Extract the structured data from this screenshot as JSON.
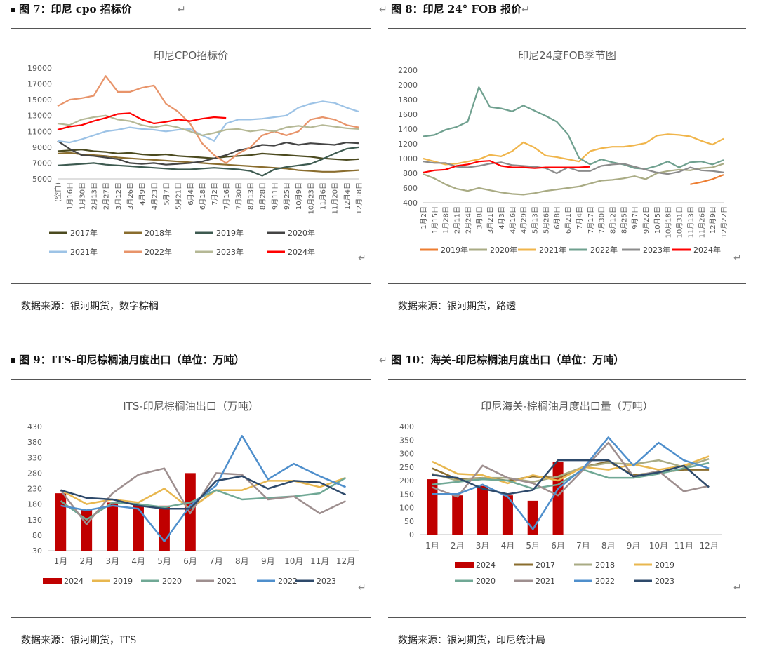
{
  "panels": [
    {
      "caption": "图 7：印尼 cpo 招标价",
      "source": "数据来源：银河期货，数字棕榈",
      "chart_data": {
        "type": "line",
        "title": "印尼CPO招标价",
        "x": [
          "(空白)",
          "1月16日",
          "1月30日",
          "2月13日",
          "2月27日",
          "3月12日",
          "3月26日",
          "4月9日",
          "4月23日",
          "5月7日",
          "5月21日",
          "6月4日",
          "6月18日",
          "7月2日",
          "7月16日",
          "7月30日",
          "8月13日",
          "8月28日",
          "9月11日",
          "9月25日",
          "10月9日",
          "10月23日",
          "11月6日",
          "11月20日",
          "12月4日",
          "12月18日"
        ],
        "y_ticks": [
          "5000",
          "7000",
          "9000",
          "11000",
          "13000",
          "15000",
          "17000",
          "19000"
        ],
        "ylim": [
          5000,
          19000
        ],
        "series": [
          {
            "name": "2017年",
            "color": "#4b4a1f",
            "values": [
              8500,
              8600,
              8700,
              8500,
              8400,
              8200,
              8300,
              8100,
              8000,
              8100,
              7900,
              7800,
              7700,
              7600,
              7800,
              7900,
              8000,
              8200,
              8100,
              8000,
              7900,
              7800,
              7600,
              7500,
              7400,
              7500
            ]
          },
          {
            "name": "2018年",
            "color": "#8a6d2e",
            "values": [
              8200,
              8300,
              8100,
              8000,
              7900,
              7700,
              7600,
              7500,
              7400,
              7300,
              7200,
              7100,
              7000,
              6900,
              6800,
              6700,
              6600,
              6500,
              6400,
              6300,
              6100,
              6000,
              5900,
              5900,
              6000,
              6100
            ]
          },
          {
            "name": "2019年",
            "color": "#3d5a50",
            "values": [
              6700,
              6800,
              6900,
              7000,
              6800,
              6700,
              6600,
              6500,
              6400,
              6300,
              6200,
              6200,
              6300,
              6400,
              6300,
              6200,
              6000,
              5400,
              6200,
              6500,
              6700,
              6900,
              7500,
              8200,
              8800,
              9000
            ]
          },
          {
            "name": "2020年",
            "color": "#444444",
            "values": [
              9800,
              8800,
              8000,
              7900,
              7700,
              7500,
              7000,
              6900,
              7000,
              6800,
              6900,
              7000,
              7200,
              7600,
              8000,
              8600,
              8900,
              9300,
              9200,
              9600,
              9300,
              9500,
              9400,
              9300,
              9600,
              9500
            ]
          },
          {
            "name": "2021年",
            "color": "#9dc3e6",
            "values": [
              9800,
              9600,
              10000,
              10500,
              11000,
              11200,
              11500,
              11300,
              11200,
              11000,
              11200,
              11300,
              10500,
              9800,
              12000,
              12500,
              12500,
              12600,
              12800,
              13000,
              14000,
              14500,
              14800,
              14600,
              14000,
              13500
            ]
          },
          {
            "name": "2022年",
            "color": "#e8946a",
            "values": [
              14200,
              15000,
              15200,
              15500,
              18000,
              16000,
              16000,
              16500,
              16800,
              14500,
              13500,
              12000,
              9500,
              8000,
              7000,
              8200,
              9000,
              10500,
              11000,
              10500,
              11000,
              12500,
              12800,
              12500,
              11800,
              11500
            ]
          },
          {
            "name": "2023年",
            "color": "#b5b895",
            "values": [
              12000,
              11800,
              12500,
              12800,
              13000,
              12500,
              12300,
              11800,
              11500,
              11800,
              11500,
              11000,
              10500,
              10800,
              11200,
              11300,
              11000,
              11200,
              11000,
              11500,
              11700,
              11500,
              11800,
              11600,
              11400,
              11300
            ]
          },
          {
            "name": "2024年",
            "color": "#ff0000",
            "values": [
              11200,
              11600,
              11800,
              12300,
              12700,
              13200,
              13300,
              12500,
              12000,
              12200,
              12500,
              12300,
              12600,
              12800,
              12700,
              null,
              null,
              null,
              null,
              null,
              null,
              null,
              null,
              null,
              null,
              null
            ]
          }
        ]
      }
    },
    {
      "caption": "图 8：印尼 24° FOB 报价",
      "source": "数据来源：银河期货，路透",
      "chart_data": {
        "type": "line",
        "title": "印尼24度FOB季节图",
        "x": [
          "1月2日",
          "1月15日",
          "1月28日",
          "2月11日",
          "2月24日",
          "3月8日",
          "3月21日",
          "4月3日",
          "4月16日",
          "4月29日",
          "5月13日",
          "5月26日",
          "6月8日",
          "6月21日",
          "7月4日",
          "7月17日",
          "7月30日",
          "8月12日",
          "8月25日",
          "9月7日",
          "9月22日",
          "10月5日",
          "10月18日",
          "10月31日",
          "11月13日",
          "11月26日",
          "12月9日",
          "12月22日"
        ],
        "y_ticks": [
          "400",
          "600",
          "800",
          "1000",
          "1200",
          "1400",
          "1600",
          "1800",
          "2000",
          "2200"
        ],
        "ylim": [
          400,
          2200
        ],
        "series": [
          {
            "name": "2019年",
            "color": "#ed7d31",
            "values": [
              null,
              null,
              null,
              null,
              null,
              null,
              null,
              null,
              null,
              null,
              null,
              null,
              null,
              null,
              null,
              null,
              null,
              null,
              null,
              null,
              null,
              null,
              null,
              null,
              650,
              680,
              720,
              780
            ]
          },
          {
            "name": "2020年",
            "color": "#a9ab84",
            "values": [
              790,
              730,
              650,
              590,
              560,
              600,
              570,
              540,
              520,
              510,
              530,
              560,
              580,
              600,
              620,
              660,
              700,
              710,
              730,
              760,
              720,
              800,
              830,
              850,
              840,
              870,
              880,
              930
            ]
          },
          {
            "name": "2021年",
            "color": "#f0b54b",
            "values": [
              1000,
              960,
              920,
              930,
              960,
              990,
              1050,
              1030,
              1100,
              1220,
              1150,
              1040,
              1020,
              990,
              960,
              1100,
              1140,
              1160,
              1160,
              1180,
              1210,
              1310,
              1330,
              1320,
              1300,
              1240,
              1190,
              1270
            ]
          },
          {
            "name": "2022年",
            "color": "#6fa08f",
            "values": [
              1300,
              1320,
              1390,
              1430,
              1500,
              1970,
              1700,
              1680,
              1640,
              1720,
              1650,
              1580,
              1500,
              1330,
              1010,
              920,
              990,
              950,
              920,
              870,
              860,
              900,
              960,
              880,
              950,
              960,
              920,
              980
            ]
          },
          {
            "name": "2023年",
            "color": "#8c8c8c",
            "values": [
              960,
              940,
              940,
              890,
              880,
              900,
              930,
              950,
              910,
              900,
              890,
              870,
              800,
              880,
              830,
              830,
              900,
              920,
              930,
              890,
              850,
              810,
              790,
              820,
              880,
              840,
              830,
              810
            ]
          },
          {
            "name": "2024年",
            "color": "#ff0000",
            "values": [
              810,
              840,
              850,
              900,
              920,
              960,
              970,
              900,
              880,
              880,
              870,
              880,
              880,
              880,
              880,
              890,
              null,
              null,
              null,
              null,
              null,
              null,
              null,
              null,
              null,
              null,
              null,
              null
            ]
          }
        ]
      }
    },
    {
      "caption": "图 9：ITS-印尼棕榈油月度出口（单位：万吨）",
      "source": "数据来源：银河期货，ITS",
      "chart_data": {
        "type": "bar+line",
        "title": "ITS-印尼棕榈油出口（万吨）",
        "categories": [
          "1月",
          "2月",
          "3月",
          "4月",
          "5月",
          "6月",
          "7月",
          "8月",
          "9月",
          "10月",
          "11月",
          "12月"
        ],
        "y_ticks": [
          "30",
          "80",
          "130",
          "180",
          "230",
          "280",
          "330",
          "380",
          "430"
        ],
        "ylim": [
          30,
          430
        ],
        "bar": {
          "name": "2024",
          "color": "#c00000",
          "values": [
            215,
            160,
            185,
            180,
            175,
            280,
            null,
            null,
            null,
            null,
            null,
            null
          ]
        },
        "series": [
          {
            "name": "2019",
            "color": "#e8b74f",
            "values": [
              225,
              180,
              195,
              185,
              230,
              165,
              225,
              225,
              255,
              255,
              235,
              265
            ]
          },
          {
            "name": "2020",
            "color": "#70a895",
            "values": [
              190,
              130,
              185,
              180,
              170,
              185,
              225,
              195,
              200,
              205,
              215,
              265
            ]
          },
          {
            "name": "2021",
            "color": "#9e8f8f",
            "values": [
              225,
              115,
              215,
              275,
              295,
              150,
              280,
              275,
              195,
              205,
              150,
              190
            ]
          },
          {
            "name": "2022",
            "color": "#4f8fcc",
            "values": [
              175,
              160,
              175,
              165,
              60,
              175,
              240,
              400,
              260,
              310,
              270,
              235
            ]
          },
          {
            "name": "2023",
            "color": "#2e4a6b",
            "values": [
              225,
              200,
              195,
              175,
              165,
              165,
              255,
              270,
              230,
              255,
              250,
              210
            ]
          }
        ]
      }
    },
    {
      "caption": "图 10：海关-印尼棕榈油月度出口（单位：万吨）",
      "source": "数据来源：银河期货，印尼统计局",
      "chart_data": {
        "type": "bar+line",
        "title": "印尼海关-棕榈油月度出口量（万吨）",
        "categories": [
          "1月",
          "2月",
          "3月",
          "4月",
          "5月",
          "6月",
          "7月",
          "8月",
          "9月",
          "10月",
          "11月",
          "12月"
        ],
        "y_ticks": [
          "0",
          "50",
          "100",
          "150",
          "200",
          "250",
          "300",
          "350",
          "400"
        ],
        "ylim": [
          0,
          400
        ],
        "bar": {
          "name": "2024",
          "color": "#c00000",
          "values": [
            205,
            145,
            180,
            145,
            125,
            270,
            null,
            null,
            null,
            null,
            null,
            null
          ]
        },
        "series": [
          {
            "name": "2017",
            "color": "#8a6d2e",
            "values": [
              245,
              205,
              210,
              200,
              215,
              210,
              250,
              270,
              220,
              230,
              240,
              240
            ]
          },
          {
            "name": "2018",
            "color": "#a9ab84",
            "values": [
              225,
              200,
              210,
              210,
              195,
              215,
              250,
              265,
              260,
              275,
              250,
              280
            ]
          },
          {
            "name": "2019",
            "color": "#e8b74f",
            "values": [
              270,
              225,
              220,
              190,
              220,
              200,
              250,
              240,
              260,
              240,
              255,
              290
            ]
          },
          {
            "name": "2020",
            "color": "#70a895",
            "values": [
              185,
              195,
              205,
              200,
              170,
              185,
              240,
              210,
              210,
              225,
              245,
              265
            ]
          },
          {
            "name": "2021",
            "color": "#9e8f8f",
            "values": [
              175,
              140,
              255,
              210,
              190,
              145,
              240,
              340,
              215,
              235,
              160,
              180
            ]
          },
          {
            "name": "2022",
            "color": "#4f8fcc",
            "values": [
              150,
              150,
              185,
              140,
              20,
              170,
              245,
              360,
              255,
              340,
              275,
              245
            ]
          },
          {
            "name": "2023",
            "color": "#2e4a6b",
            "values": [
              220,
              210,
              170,
              150,
              165,
              275,
              275,
              275,
              215,
              230,
              255,
              175
            ]
          }
        ]
      }
    }
  ]
}
